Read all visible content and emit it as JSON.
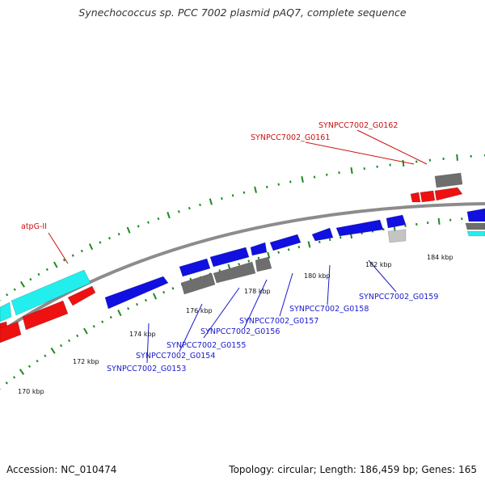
{
  "title": "Synechococcus sp. PCC 7002 plasmid pAQ7, complete sequence",
  "footer": {
    "accession": "Accession: NC_010474",
    "summary": "Topology: circular; Length: 186,459 bp; Genes: 165"
  },
  "colors": {
    "backbone": "#8c8c8c",
    "tick": "#1f8a1f",
    "blue_gene": "#1010e0",
    "gray_gene": "#6e6e6e",
    "light_gray_gene": "#c4c4c4",
    "red_gene": "#ee1111",
    "cyan_gene": "#22eeee",
    "blue_label": "#1a1acc",
    "red_label": "#cc1111"
  },
  "ruler_labels": [
    {
      "text": "170 kbp"
    },
    {
      "text": "172 kbp"
    },
    {
      "text": "174 kbp"
    },
    {
      "text": "176 kbp"
    },
    {
      "text": "178 kbp"
    },
    {
      "text": "180 kbp"
    },
    {
      "text": "182 kbp"
    },
    {
      "text": "184 kbp"
    }
  ],
  "gene_labels": [
    {
      "text": "atpG-II",
      "color": "red"
    },
    {
      "text": "SYNPCC7002_G0162",
      "color": "red"
    },
    {
      "text": "SYNPCC7002_G0161",
      "color": "red"
    },
    {
      "text": "SYNPCC7002_G0159",
      "color": "blue"
    },
    {
      "text": "SYNPCC7002_G0158",
      "color": "blue"
    },
    {
      "text": "SYNPCC7002_G0157",
      "color": "blue"
    },
    {
      "text": "SYNPCC7002_G0156",
      "color": "blue"
    },
    {
      "text": "SYNPCC7002_G0155",
      "color": "blue"
    },
    {
      "text": "SYNPCC7002_G0154",
      "color": "blue"
    },
    {
      "text": "SYNPCC7002_G0153",
      "color": "blue"
    }
  ]
}
